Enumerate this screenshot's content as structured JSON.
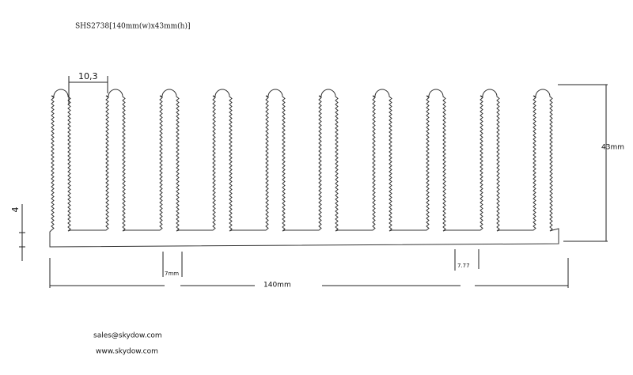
{
  "header": {
    "title": "SHS2738[140mm(w)x43mm(h)]"
  },
  "dimensions": {
    "fin_pitch": "10,3",
    "height": "43mm",
    "base_thickness": "4",
    "gap": "7mm",
    "width": "140mm",
    "edge": "7.77"
  },
  "contact": {
    "email": "sales@skydow.com",
    "website": "www.skydow.com"
  }
}
